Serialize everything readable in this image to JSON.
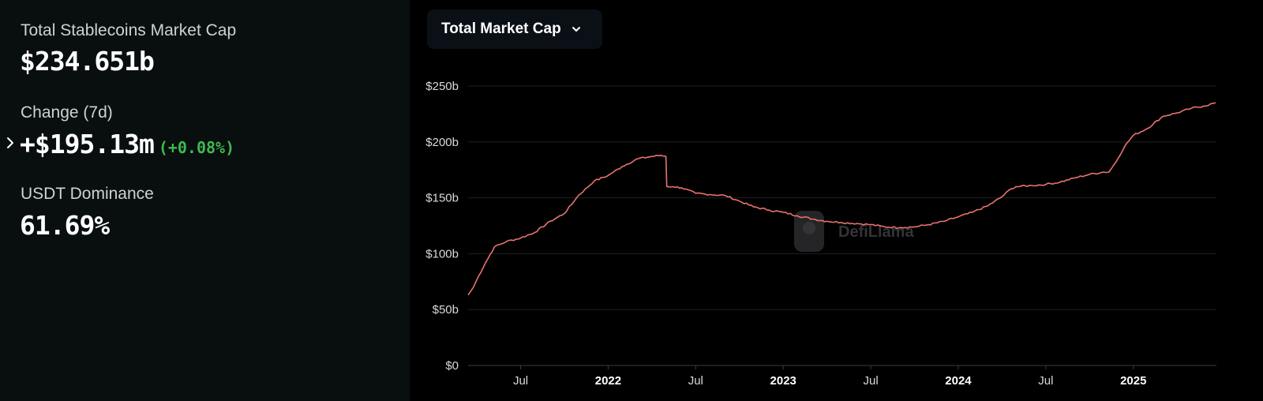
{
  "summary": {
    "market_cap_label": "Total Stablecoins Market Cap",
    "market_cap_value": "$234.651b",
    "change_label": "Change (7d)",
    "change_value": "+$195.13m",
    "change_pct": "(+0.08%)",
    "dominance_label": "USDT Dominance",
    "dominance_value": "61.69%"
  },
  "dropdown": {
    "selected": "Total Market Cap"
  },
  "watermark": {
    "text": "DefiLlama"
  },
  "colors": {
    "line": "#e8736f",
    "positive": "#3fb950",
    "panel_bg": "#090e0f",
    "chart_bg": "#000000",
    "grid": "#1c1f22"
  },
  "chart_data": {
    "type": "line",
    "title": "Total Market Cap",
    "xlabel": "",
    "ylabel": "",
    "ylim": [
      0,
      250
    ],
    "y_unit": "b",
    "y_ticks": [
      {
        "value": 0,
        "label": "$0"
      },
      {
        "value": 50,
        "label": "$50b"
      },
      {
        "value": 100,
        "label": "$100b"
      },
      {
        "value": 150,
        "label": "$150b"
      },
      {
        "value": 200,
        "label": "$200b"
      },
      {
        "value": 250,
        "label": "$250b"
      }
    ],
    "xlim": [
      2021.2,
      2025.47
    ],
    "x_ticks": [
      {
        "value": 2021.5,
        "label": "Jul",
        "bold": false
      },
      {
        "value": 2022.0,
        "label": "2022",
        "bold": true
      },
      {
        "value": 2022.5,
        "label": "Jul",
        "bold": false
      },
      {
        "value": 2023.0,
        "label": "2023",
        "bold": true
      },
      {
        "value": 2023.5,
        "label": "Jul",
        "bold": false
      },
      {
        "value": 2024.0,
        "label": "2024",
        "bold": true
      },
      {
        "value": 2024.5,
        "label": "Jul",
        "bold": false
      },
      {
        "value": 2025.0,
        "label": "2025",
        "bold": true
      }
    ],
    "series": [
      {
        "name": "Total Market Cap",
        "x": [
          2021.2,
          2021.23,
          2021.26,
          2021.3,
          2021.35,
          2021.42,
          2021.5,
          2021.58,
          2021.67,
          2021.75,
          2021.83,
          2021.92,
          2022.0,
          2022.08,
          2022.17,
          2022.25,
          2022.3,
          2022.33,
          2022.34,
          2022.37,
          2022.42,
          2022.5,
          2022.58,
          2022.67,
          2022.75,
          2022.83,
          2022.92,
          2023.0,
          2023.08,
          2023.17,
          2023.25,
          2023.33,
          2023.42,
          2023.5,
          2023.58,
          2023.67,
          2023.75,
          2023.83,
          2023.92,
          2024.0,
          2024.08,
          2024.17,
          2024.25,
          2024.3,
          2024.33,
          2024.42,
          2024.5,
          2024.58,
          2024.67,
          2024.75,
          2024.83,
          2024.86,
          2024.9,
          2024.95,
          2025.0,
          2025.08,
          2025.17,
          2025.25,
          2025.33,
          2025.4,
          2025.47
        ],
        "values": [
          63,
          70,
          80,
          92,
          106,
          111,
          114,
          119,
          129,
          136,
          152,
          165,
          170,
          178,
          185,
          187,
          188,
          187,
          160,
          160,
          159,
          154,
          153,
          152,
          147,
          142,
          139,
          137,
          134,
          131,
          129,
          128,
          127,
          126,
          124,
          123.5,
          124,
          126,
          129,
          133,
          137,
          143,
          151,
          158,
          160,
          161,
          162,
          164,
          168,
          171,
          173,
          173,
          182,
          196,
          206,
          212,
          223,
          226,
          230,
          232,
          235
        ]
      }
    ]
  }
}
